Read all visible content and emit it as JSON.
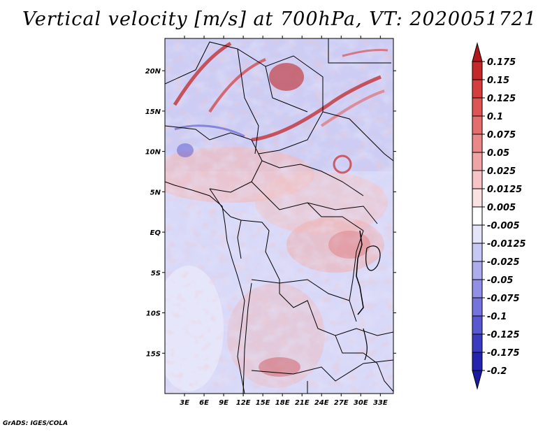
{
  "title": "Vertical velocity [m/s] at 700hPa, VT: 2020051721",
  "credit": "GrADS: IGES/COLA",
  "map": {
    "lon_range": [
      0,
      35
    ],
    "lat_range": [
      -20,
      24
    ],
    "lat_ticks": [
      "20N",
      "15N",
      "10N",
      "5N",
      "EQ",
      "5S",
      "10S",
      "15S"
    ],
    "lat_tick_values": [
      20,
      15,
      10,
      5,
      0,
      -5,
      -10,
      -15
    ],
    "lon_ticks": [
      "3E",
      "6E",
      "9E",
      "12E",
      "15E",
      "18E",
      "21E",
      "24E",
      "27E",
      "30E",
      "33E"
    ],
    "lon_tick_values": [
      3,
      6,
      9,
      12,
      15,
      18,
      21,
      24,
      27,
      30,
      33
    ]
  },
  "colorbar": {
    "labels": [
      "0.175",
      "0.15",
      "0.125",
      "0.1",
      "0.075",
      "0.05",
      "0.025",
      "0.0125",
      "0.005",
      "-0.005",
      "-0.0125",
      "-0.025",
      "-0.05",
      "-0.075",
      "-0.1",
      "-0.125",
      "-0.175",
      "-0.2"
    ],
    "colors": [
      "#b2181b",
      "#c52a2a",
      "#d63e3e",
      "#de5555",
      "#e46e6e",
      "#ea8888",
      "#f0a5a5",
      "#f6c4c4",
      "#fbe2e2",
      "#ffffff",
      "#e4e4fb",
      "#c8c8f5",
      "#acacee",
      "#9090e6",
      "#7474dc",
      "#5858d0",
      "#3b3bc2",
      "#2424b0",
      "#1a1aa0"
    ]
  }
}
